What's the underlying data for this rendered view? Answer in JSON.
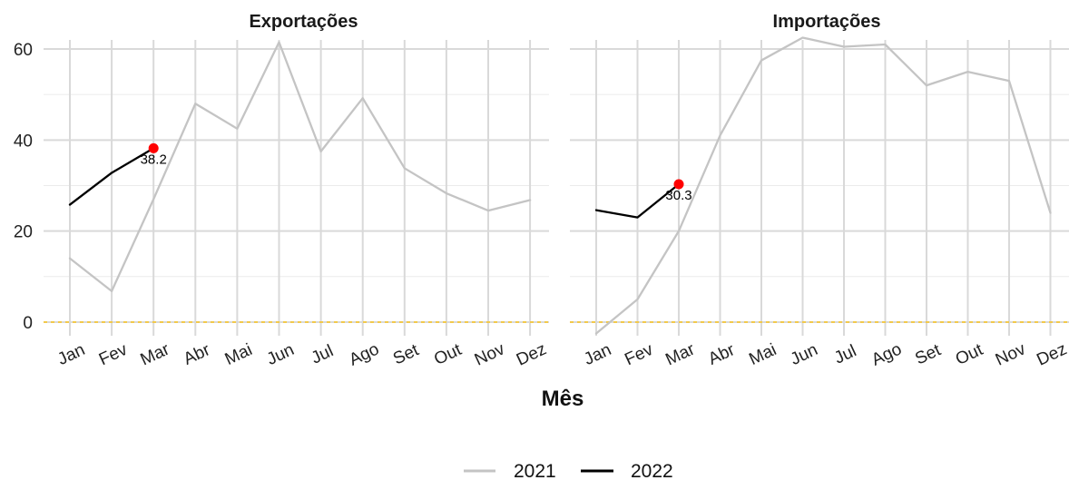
{
  "chart_data": {
    "type": "line",
    "categories": [
      "Jan",
      "Fev",
      "Mar",
      "Abr",
      "Mai",
      "Jun",
      "Jul",
      "Ago",
      "Set",
      "Out",
      "Nov",
      "Dez"
    ],
    "xlabel": "Mês",
    "ylim": [
      -3,
      62
    ],
    "yticks": [
      0,
      20,
      40,
      60
    ],
    "grid": true,
    "legend_position": "bottom",
    "reference_line": {
      "y": 0,
      "style": "dashed",
      "color": "#f2c94c"
    },
    "panels": [
      {
        "title": "Exportações",
        "series": [
          {
            "name": "2021",
            "color": "#c4c4c4",
            "values": [
              14,
              6.8,
              27,
              48,
              42.5,
              61.5,
              37.5,
              49.2,
              33.8,
              28.3,
              24.5,
              26.8
            ]
          },
          {
            "name": "2022",
            "color": "#000000",
            "values": [
              25.8,
              32.8,
              38.2
            ]
          }
        ],
        "highlight": {
          "index": 2,
          "value": 38.2,
          "label": "38.2",
          "color": "#ff0000"
        }
      },
      {
        "title": "Importações",
        "series": [
          {
            "name": "2021",
            "color": "#c4c4c4",
            "values": [
              -2.5,
              5,
              20,
              41,
              57.5,
              62.5,
              60.5,
              61,
              52,
              55,
              53,
              24
            ]
          },
          {
            "name": "2022",
            "color": "#000000",
            "values": [
              24.6,
              23,
              30.3
            ]
          }
        ],
        "highlight": {
          "index": 2,
          "value": 30.3,
          "label": "30.3",
          "color": "#ff0000"
        }
      }
    ],
    "legend": [
      {
        "name": "2021",
        "color": "#c4c4c4"
      },
      {
        "name": "2022",
        "color": "#000000"
      }
    ]
  }
}
